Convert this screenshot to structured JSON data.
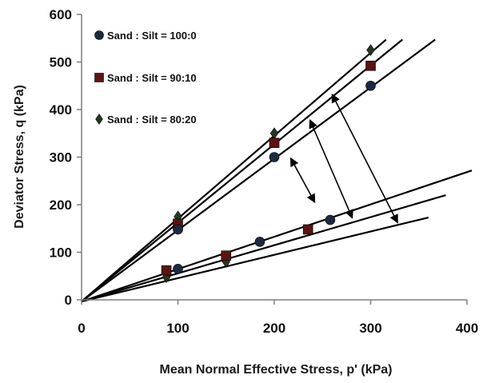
{
  "chart_data": {
    "type": "scatter",
    "title": "",
    "xlabel": "Mean Normal Effective Stress, p' (kPa)",
    "ylabel": "Deviator Stress, q (kPa)",
    "xlim": [
      0,
      400
    ],
    "ylim": [
      0,
      600
    ],
    "xticks": [
      "0",
      "100",
      "200",
      "300",
      "400"
    ],
    "yticks": [
      "0",
      "100",
      "200",
      "300",
      "400",
      "500",
      "600"
    ],
    "grid": false,
    "legend_position": "top-left",
    "series": [
      {
        "name": "Sand : Silt = 100:0",
        "marker": "circle",
        "color": "#1c2a40",
        "points": [
          [
            100,
            65
          ],
          [
            185,
            122
          ],
          [
            258,
            168
          ],
          [
            100,
            148
          ],
          [
            200,
            300
          ],
          [
            300,
            450
          ]
        ]
      },
      {
        "name": "Sand : Silt = 90:10",
        "marker": "square",
        "color": "#5a1512",
        "points": [
          [
            88,
            62
          ],
          [
            150,
            93
          ],
          [
            235,
            148
          ],
          [
            100,
            160
          ],
          [
            200,
            330
          ],
          [
            300,
            492
          ]
        ]
      },
      {
        "name": "Sand : Silt = 80:20",
        "marker": "diamond",
        "color": "#243a1e",
        "points": [
          [
            88,
            48
          ],
          [
            150,
            80
          ],
          [
            100,
            175
          ],
          [
            200,
            350
          ],
          [
            300,
            525
          ]
        ]
      }
    ],
    "fit_lines": [
      {
        "x": [
          0,
          316
        ],
        "y": [
          0,
          547
        ]
      },
      {
        "x": [
          0,
          333
        ],
        "y": [
          0,
          547
        ]
      },
      {
        "x": [
          0,
          367
        ],
        "y": [
          0,
          547
        ]
      },
      {
        "x": [
          0,
          405
        ],
        "y": [
          0,
          272
        ]
      },
      {
        "x": [
          0,
          378
        ],
        "y": [
          0,
          220
        ]
      },
      {
        "x": [
          0,
          360
        ],
        "y": [
          0,
          173
        ]
      }
    ],
    "arrows": [
      {
        "from": [
          217,
          298
        ],
        "to": [
          242,
          205
        ]
      },
      {
        "from": [
          237,
          378
        ],
        "to": [
          281,
          172
        ]
      },
      {
        "from": [
          260,
          432
        ],
        "to": [
          328,
          162
        ]
      }
    ]
  }
}
